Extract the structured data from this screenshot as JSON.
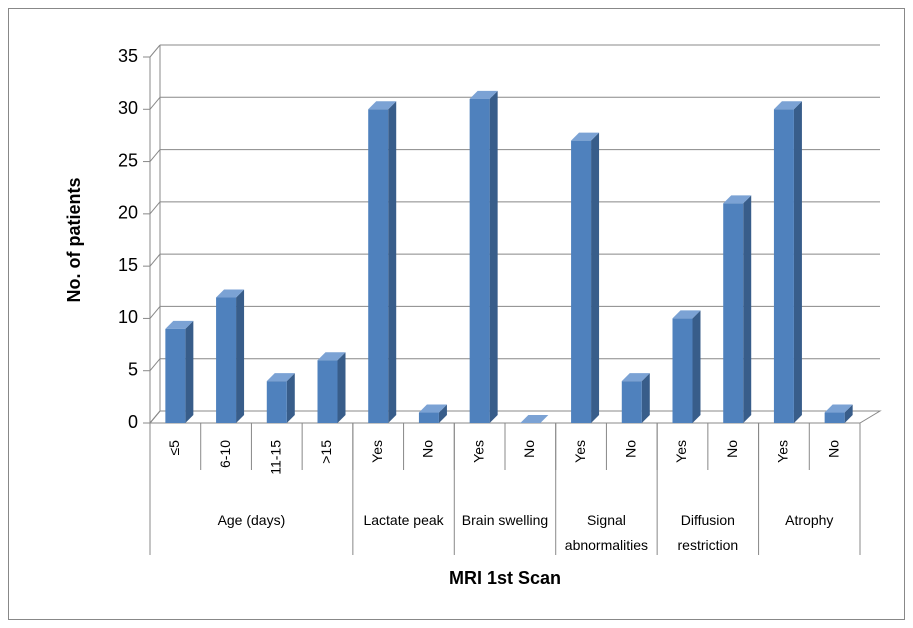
{
  "chart_data": {
    "type": "bar3d",
    "x_label": "MRI 1st Scan",
    "y_label": "No. of patients",
    "categories": [
      "≤5",
      "6-10",
      "11-15",
      ">15",
      "Yes",
      "No",
      "Yes",
      "No",
      "Yes",
      "No",
      "Yes",
      "No",
      "Yes",
      "No"
    ],
    "groups": [
      {
        "label": "Age (days)",
        "span": 4
      },
      {
        "label": "Lactate peak",
        "span": 2
      },
      {
        "label": "Brain swelling",
        "span": 2
      },
      {
        "label": "Signal abnormalities",
        "span": 2
      },
      {
        "label": "Diffusion restriction",
        "span": 2
      },
      {
        "label": "Atrophy",
        "span": 2
      }
    ],
    "values": [
      9,
      12,
      4,
      6,
      30,
      1,
      31,
      0,
      27,
      4,
      10,
      21,
      30,
      1
    ],
    "color": "#4f81bd",
    "ylim": [
      0,
      35
    ],
    "yticks": [
      0,
      5,
      10,
      15,
      20,
      25,
      30,
      35
    ],
    "grid": true
  }
}
